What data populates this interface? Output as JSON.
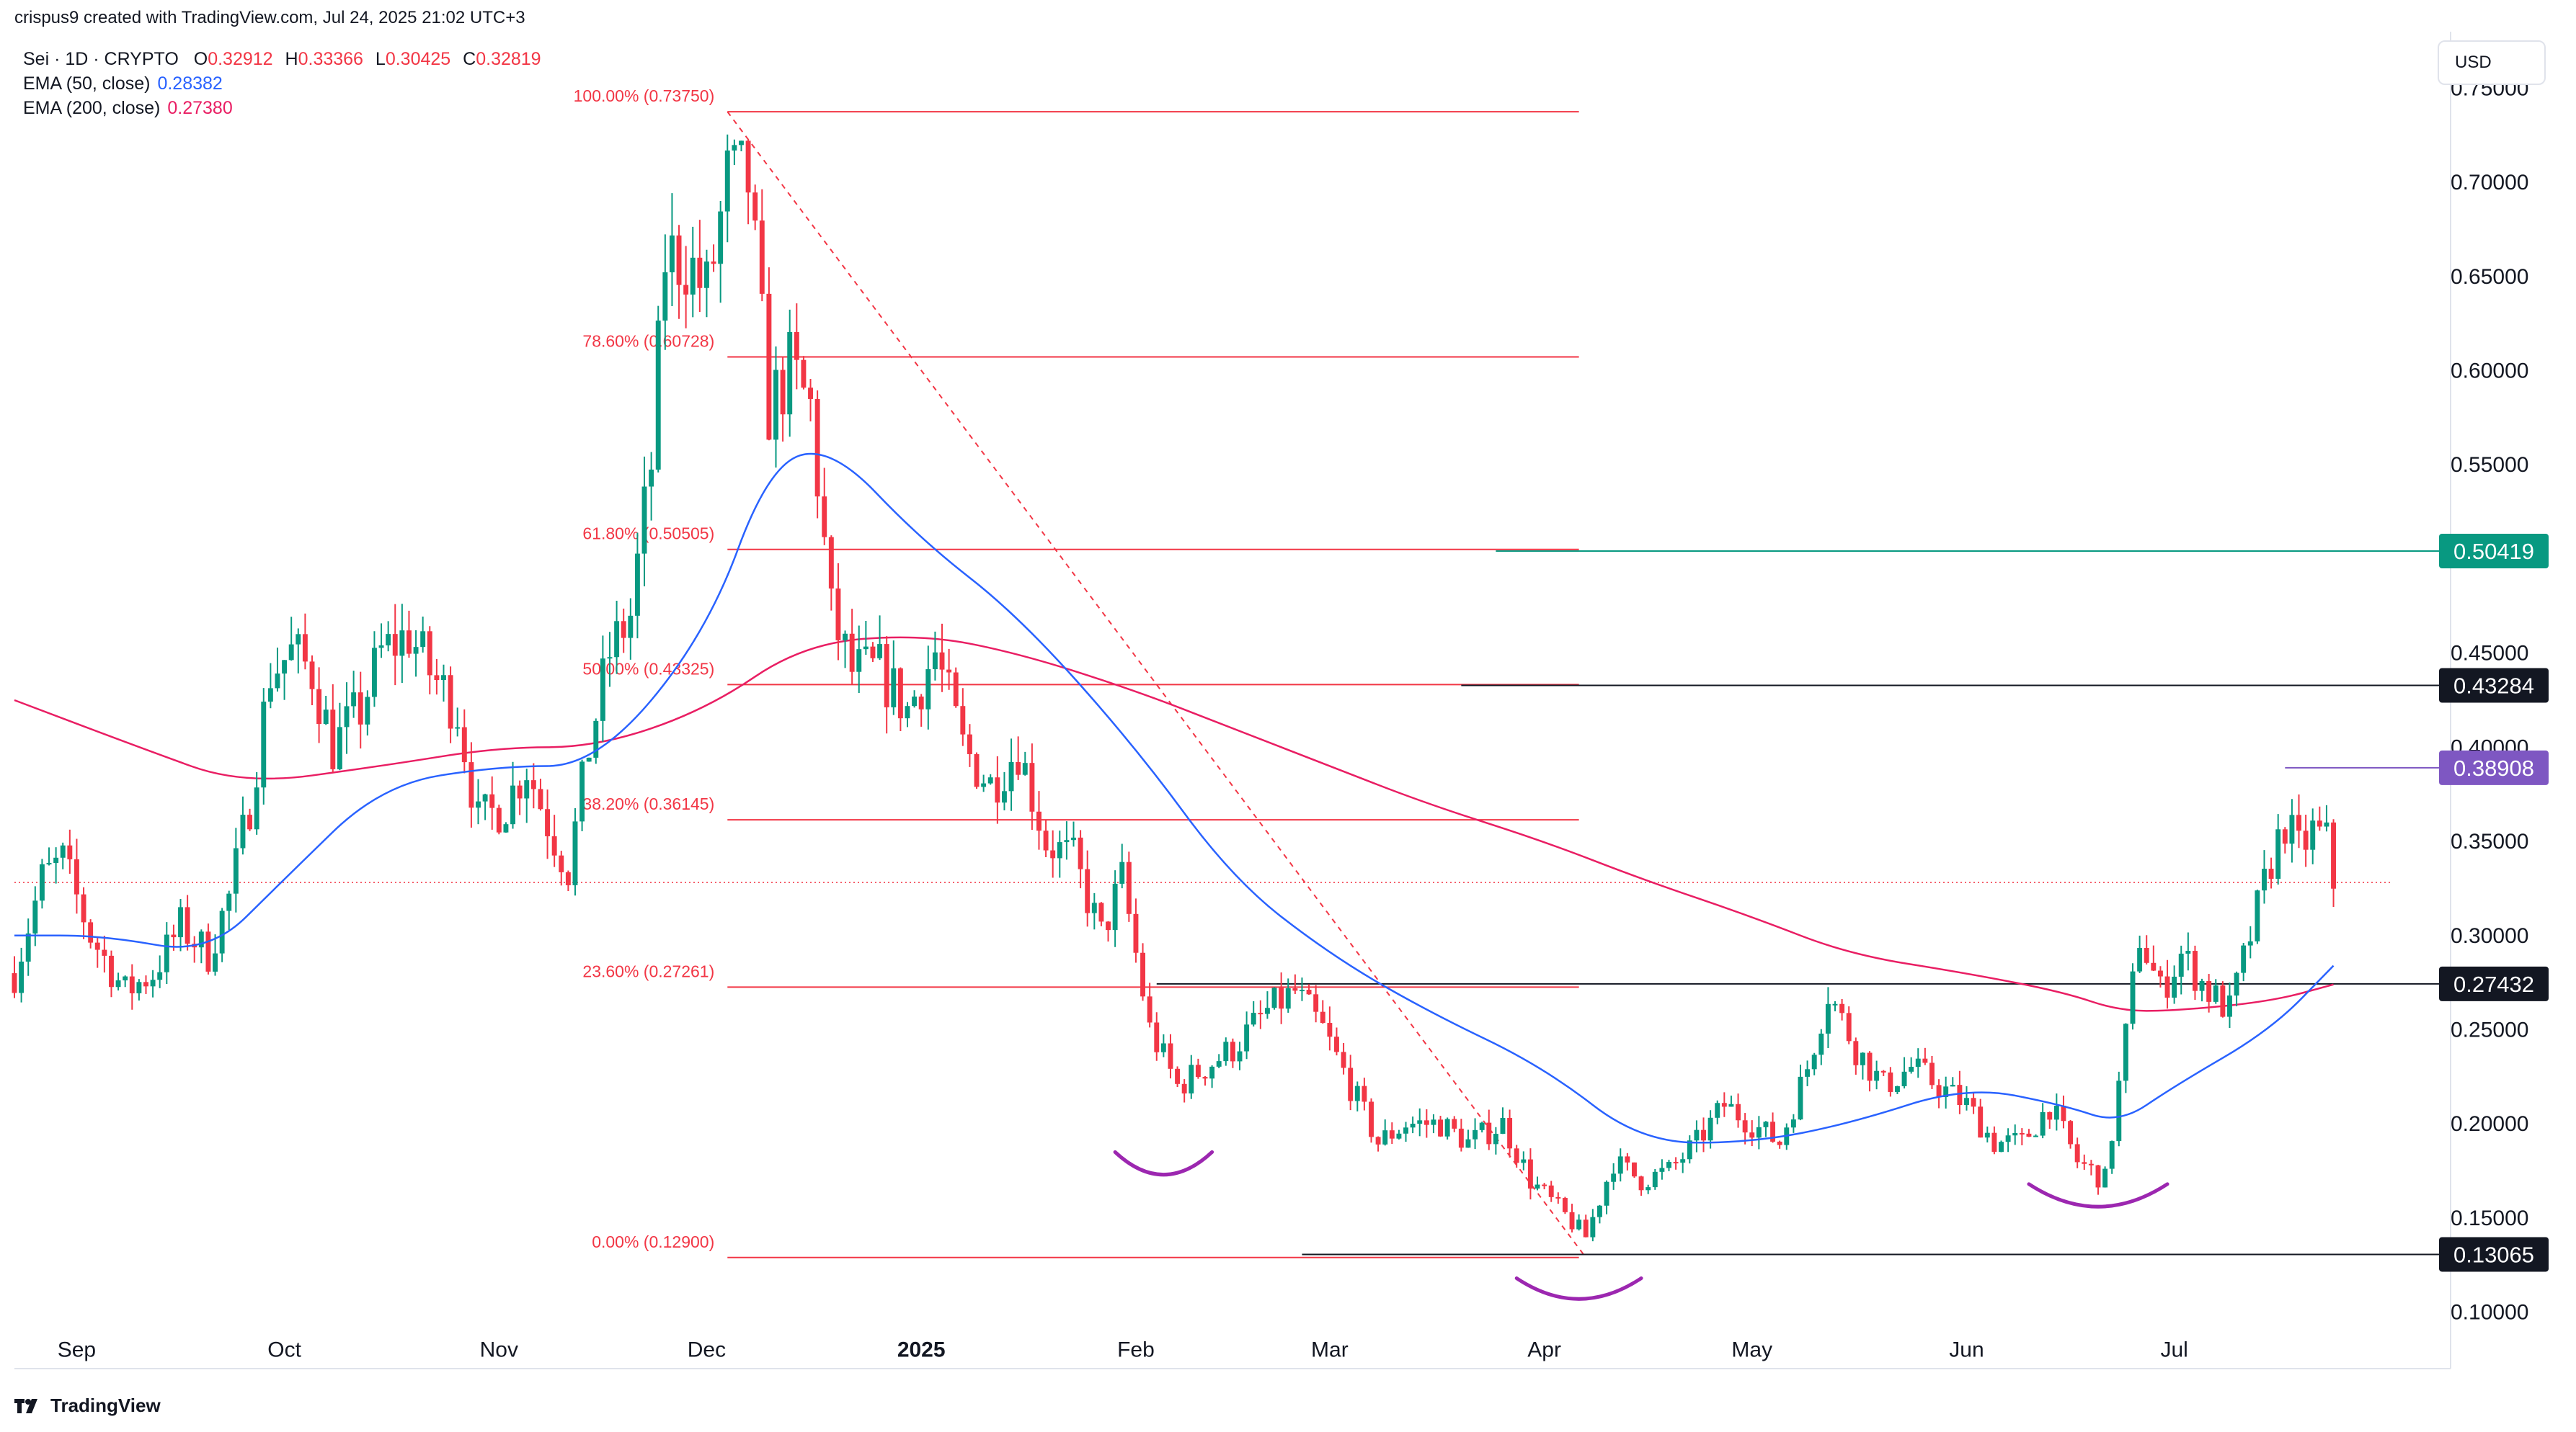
{
  "header": {
    "author_line": "crispus9 created with TradingView.com, Jul 24, 2025 21:02 UTC+3",
    "symbol": "Sei · 1D · CRYPTO",
    "ohlc": {
      "o_label": "O",
      "o": "0.32912",
      "h_label": "H",
      "h": "0.33366",
      "l_label": "L",
      "l": "0.30425",
      "c_label": "C",
      "c": "0.32819"
    },
    "ema50": {
      "label": "EMA (50, close)",
      "value": "0.28382"
    },
    "ema200": {
      "label": "EMA (200, close)",
      "value": "0.27380"
    }
  },
  "currency": "USD",
  "brand": "TradingView",
  "colors": {
    "up": "#089981",
    "down": "#f23645",
    "ema50": "#2962ff",
    "ema200": "#e91e63",
    "fib": "#f23645",
    "pattern": "#9c27b0",
    "resistance_tag": "#089981",
    "tag_purple": "#7e57c2",
    "tag_black": "#131722"
  },
  "chart_data": {
    "type": "candlestick",
    "title": "",
    "xlabel": "",
    "ylabel": "",
    "ylim": [
      0.07,
      0.78
    ],
    "y_ticks": [
      0.1,
      0.15,
      0.2,
      0.25,
      0.3,
      0.35,
      0.4,
      0.45,
      0.55,
      0.6,
      0.65,
      0.7,
      0.75
    ],
    "y_tick_labels": [
      "0.10000",
      "0.15000",
      "0.20000",
      "0.25000",
      "0.30000",
      "0.35000",
      "0.40000",
      "0.45000",
      "0.55000",
      "0.60000",
      "0.65000",
      "0.70000",
      "0.75000"
    ],
    "x_range": [
      "2024-08-23",
      "2025-08-07"
    ],
    "x_ticks": [
      {
        "date": "2024-09-01",
        "label": "Sep"
      },
      {
        "date": "2024-10-01",
        "label": "Oct"
      },
      {
        "date": "2024-11-01",
        "label": "Nov"
      },
      {
        "date": "2024-12-01",
        "label": "Dec"
      },
      {
        "date": "2025-01-01",
        "label": "2025"
      },
      {
        "date": "2025-02-01",
        "label": "Feb"
      },
      {
        "date": "2025-03-01",
        "label": "Mar"
      },
      {
        "date": "2025-04-01",
        "label": "Apr"
      },
      {
        "date": "2025-05-01",
        "label": "May"
      },
      {
        "date": "2025-06-01",
        "label": "Jun"
      },
      {
        "date": "2025-07-01",
        "label": "Jul"
      }
    ],
    "close_path": [
      [
        "2024-08-23",
        0.28
      ],
      [
        "2024-08-27",
        0.33
      ],
      [
        "2024-08-30",
        0.34
      ],
      [
        "2024-09-03",
        0.3
      ],
      [
        "2024-09-08",
        0.27
      ],
      [
        "2024-09-12",
        0.28
      ],
      [
        "2024-09-16",
        0.305
      ],
      [
        "2024-09-20",
        0.29
      ],
      [
        "2024-09-23",
        0.32
      ],
      [
        "2024-09-26",
        0.37
      ],
      [
        "2024-09-29",
        0.44
      ],
      [
        "2024-10-02",
        0.45
      ],
      [
        "2024-10-05",
        0.44
      ],
      [
        "2024-10-08",
        0.4
      ],
      [
        "2024-10-12",
        0.42
      ],
      [
        "2024-10-15",
        0.45
      ],
      [
        "2024-10-19",
        0.46
      ],
      [
        "2024-10-22",
        0.44
      ],
      [
        "2024-10-26",
        0.42
      ],
      [
        "2024-10-29",
        0.36
      ],
      [
        "2024-11-02",
        0.37
      ],
      [
        "2024-11-05",
        0.39
      ],
      [
        "2024-11-08",
        0.36
      ],
      [
        "2024-11-11",
        0.335
      ],
      [
        "2024-11-14",
        0.4
      ],
      [
        "2024-11-17",
        0.45
      ],
      [
        "2024-11-20",
        0.47
      ],
      [
        "2024-11-23",
        0.55
      ],
      [
        "2024-11-25",
        0.66
      ],
      [
        "2024-11-28",
        0.66
      ],
      [
        "2024-12-01",
        0.64
      ],
      [
        "2024-12-04",
        0.7
      ],
      [
        "2024-12-07",
        0.7
      ],
      [
        "2024-12-10",
        0.58
      ],
      [
        "2024-12-13",
        0.6
      ],
      [
        "2024-12-16",
        0.58
      ],
      [
        "2024-12-19",
        0.47
      ],
      [
        "2024-12-22",
        0.44
      ],
      [
        "2024-12-26",
        0.44
      ],
      [
        "2024-12-30",
        0.42
      ],
      [
        "2025-01-03",
        0.45
      ],
      [
        "2025-01-07",
        0.4
      ],
      [
        "2025-01-11",
        0.38
      ],
      [
        "2025-01-15",
        0.4
      ],
      [
        "2025-01-19",
        0.35
      ],
      [
        "2025-01-23",
        0.34
      ],
      [
        "2025-01-27",
        0.3
      ],
      [
        "2025-01-30",
        0.33
      ],
      [
        "2025-02-03",
        0.25
      ],
      [
        "2025-02-07",
        0.22
      ],
      [
        "2025-02-11",
        0.23
      ],
      [
        "2025-02-15",
        0.24
      ],
      [
        "2025-02-20",
        0.26
      ],
      [
        "2025-02-24",
        0.27
      ],
      [
        "2025-02-28",
        0.25
      ],
      [
        "2025-03-04",
        0.22
      ],
      [
        "2025-03-08",
        0.19
      ],
      [
        "2025-03-12",
        0.2
      ],
      [
        "2025-03-17",
        0.2
      ],
      [
        "2025-03-21",
        0.19
      ],
      [
        "2025-03-26",
        0.2
      ],
      [
        "2025-03-30",
        0.17
      ],
      [
        "2025-04-03",
        0.155
      ],
      [
        "2025-04-07",
        0.14
      ],
      [
        "2025-04-11",
        0.18
      ],
      [
        "2025-04-15",
        0.17
      ],
      [
        "2025-04-19",
        0.175
      ],
      [
        "2025-04-23",
        0.19
      ],
      [
        "2025-04-27",
        0.21
      ],
      [
        "2025-05-01",
        0.2
      ],
      [
        "2025-05-05",
        0.19
      ],
      [
        "2025-05-09",
        0.23
      ],
      [
        "2025-05-12",
        0.27
      ],
      [
        "2025-05-16",
        0.24
      ],
      [
        "2025-05-20",
        0.22
      ],
      [
        "2025-05-24",
        0.23
      ],
      [
        "2025-05-28",
        0.22
      ],
      [
        "2025-06-01",
        0.21
      ],
      [
        "2025-06-05",
        0.19
      ],
      [
        "2025-06-09",
        0.19
      ],
      [
        "2025-06-13",
        0.21
      ],
      [
        "2025-06-17",
        0.18
      ],
      [
        "2025-06-21",
        0.17
      ],
      [
        "2025-06-23",
        0.22
      ],
      [
        "2025-06-26",
        0.3
      ],
      [
        "2025-06-29",
        0.27
      ],
      [
        "2025-07-02",
        0.29
      ],
      [
        "2025-07-06",
        0.27
      ],
      [
        "2025-07-09",
        0.26
      ],
      [
        "2025-07-12",
        0.3
      ],
      [
        "2025-07-15",
        0.34
      ],
      [
        "2025-07-17",
        0.36
      ],
      [
        "2025-07-19",
        0.345
      ],
      [
        "2025-07-21",
        0.355
      ],
      [
        "2025-07-23",
        0.35
      ],
      [
        "2025-07-24",
        0.328
      ]
    ],
    "ema50_path": [
      [
        "2024-08-23",
        0.3
      ],
      [
        "2024-09-05",
        0.3
      ],
      [
        "2024-09-20",
        0.29
      ],
      [
        "2024-10-01",
        0.33
      ],
      [
        "2024-10-15",
        0.38
      ],
      [
        "2024-11-01",
        0.39
      ],
      [
        "2024-11-15",
        0.39
      ],
      [
        "2024-12-01",
        0.46
      ],
      [
        "2024-12-10",
        0.55
      ],
      [
        "2024-12-19",
        0.56
      ],
      [
        "2025-01-01",
        0.51
      ],
      [
        "2025-01-15",
        0.47
      ],
      [
        "2025-02-01",
        0.4
      ],
      [
        "2025-02-15",
        0.33
      ],
      [
        "2025-03-01",
        0.29
      ],
      [
        "2025-03-15",
        0.26
      ],
      [
        "2025-04-01",
        0.23
      ],
      [
        "2025-04-15",
        0.19
      ],
      [
        "2025-05-01",
        0.19
      ],
      [
        "2025-05-15",
        0.2
      ],
      [
        "2025-06-01",
        0.22
      ],
      [
        "2025-06-15",
        0.21
      ],
      [
        "2025-06-23",
        0.2
      ],
      [
        "2025-07-01",
        0.22
      ],
      [
        "2025-07-15",
        0.25
      ],
      [
        "2025-07-24",
        0.284
      ]
    ],
    "ema200_path": [
      [
        "2024-08-23",
        0.425
      ],
      [
        "2024-09-10",
        0.4
      ],
      [
        "2024-09-25",
        0.38
      ],
      [
        "2024-10-15",
        0.39
      ],
      [
        "2024-11-01",
        0.4
      ],
      [
        "2024-11-15",
        0.4
      ],
      [
        "2024-12-01",
        0.42
      ],
      [
        "2024-12-15",
        0.455
      ],
      [
        "2025-01-01",
        0.46
      ],
      [
        "2025-01-15",
        0.45
      ],
      [
        "2025-02-01",
        0.43
      ],
      [
        "2025-02-15",
        0.41
      ],
      [
        "2025-03-01",
        0.39
      ],
      [
        "2025-03-15",
        0.37
      ],
      [
        "2025-04-01",
        0.35
      ],
      [
        "2025-04-15",
        0.33
      ],
      [
        "2025-05-01",
        0.31
      ],
      [
        "2025-05-15",
        0.29
      ],
      [
        "2025-06-01",
        0.28
      ],
      [
        "2025-06-15",
        0.27
      ],
      [
        "2025-06-23",
        0.26
      ],
      [
        "2025-07-01",
        0.26
      ],
      [
        "2025-07-15",
        0.265
      ],
      [
        "2025-07-24",
        0.274
      ]
    ],
    "fib_levels": [
      {
        "label": "100.00% (0.73750)",
        "value": 0.7375
      },
      {
        "label": "78.60% (0.60728)",
        "value": 0.60728
      },
      {
        "label": "61.80% (0.50505)",
        "value": 0.50505
      },
      {
        "label": "50.00% (0.43325)",
        "value": 0.43325
      },
      {
        "label": "38.20% (0.36145)",
        "value": 0.36145
      },
      {
        "label": "23.60% (0.27261)",
        "value": 0.27261
      },
      {
        "label": "0.00% (0.12900)",
        "value": 0.129
      }
    ],
    "fib_span": {
      "from": "2024-12-04",
      "to": "2025-04-06"
    },
    "fib_trend": {
      "from": [
        "2024-12-04",
        0.7375
      ],
      "to": [
        "2025-04-07",
        0.129
      ]
    },
    "horizontal_lines": [
      {
        "value": 0.50419,
        "from": "2025-03-25",
        "color": "#089981"
      },
      {
        "value": 0.43284,
        "from": "2025-03-20",
        "color": "#131722"
      },
      {
        "value": 0.38908,
        "from": "2025-07-17",
        "color": "#7e57c2"
      },
      {
        "value": 0.27432,
        "from": "2025-02-04",
        "color": "#131722"
      },
      {
        "value": 0.13065,
        "from": "2025-02-25",
        "color": "#131722"
      }
    ],
    "price_tags": [
      {
        "label": "0.50419",
        "value": 0.50419,
        "bg": "#089981"
      },
      {
        "label": "0.43284",
        "value": 0.43284,
        "bg": "#131722"
      },
      {
        "label": "0.38908",
        "value": 0.38908,
        "bg": "#7e57c2"
      },
      {
        "label": "0.27432",
        "value": 0.27432,
        "bg": "#131722"
      },
      {
        "label": "0.13065",
        "value": 0.13065,
        "bg": "#131722"
      }
    ],
    "last_price": 0.32819,
    "pattern_arcs": [
      {
        "from": "2025-01-29",
        "to": "2025-02-12",
        "top": 0.185,
        "depth": 0.012
      },
      {
        "from": "2025-03-28",
        "to": "2025-04-15",
        "top": 0.118,
        "depth": 0.011
      },
      {
        "from": "2025-06-10",
        "to": "2025-06-30",
        "top": 0.168,
        "depth": 0.012
      }
    ]
  }
}
